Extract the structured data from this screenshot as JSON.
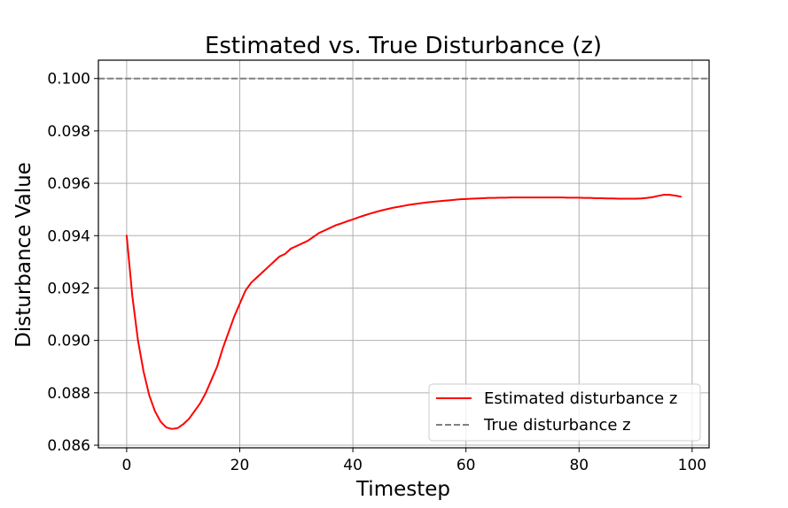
{
  "chart_data": {
    "type": "line",
    "title": "Estimated vs. True Disturbance (z)",
    "xlabel": "Timestep",
    "ylabel": "Disturbance Value",
    "xlim": [
      -5,
      103
    ],
    "ylim": [
      0.0859,
      0.1007
    ],
    "xticks": [
      0,
      20,
      40,
      60,
      80,
      100
    ],
    "xtick_labels": [
      "0",
      "20",
      "40",
      "60",
      "80",
      "100"
    ],
    "yticks": [
      0.086,
      0.088,
      0.09,
      0.092,
      0.094,
      0.096,
      0.098,
      0.1
    ],
    "ytick_labels": [
      "0.086",
      "0.088",
      "0.090",
      "0.092",
      "0.094",
      "0.096",
      "0.098",
      "0.100"
    ],
    "grid": true,
    "legend_position": "lower-right",
    "series": [
      {
        "name": "Estimated disturbance z",
        "style": "solid",
        "color": "#ff0000",
        "x": [
          0,
          1,
          2,
          3,
          4,
          5,
          6,
          7,
          8,
          9,
          10,
          11,
          12,
          13,
          14,
          15,
          16,
          17,
          18,
          19,
          20,
          21,
          22,
          23,
          24,
          25,
          26,
          27,
          28,
          29,
          30,
          31,
          32,
          33,
          34,
          35,
          36,
          37,
          38,
          39,
          40,
          41,
          42,
          43,
          44,
          45,
          46,
          47,
          48,
          49,
          50,
          51,
          52,
          53,
          54,
          55,
          56,
          57,
          58,
          59,
          60,
          61,
          62,
          63,
          64,
          65,
          66,
          67,
          68,
          69,
          70,
          71,
          72,
          73,
          74,
          75,
          76,
          77,
          78,
          79,
          80,
          81,
          82,
          83,
          84,
          85,
          86,
          87,
          88,
          89,
          90,
          91,
          92,
          93,
          94,
          95,
          96,
          97,
          98
        ],
        "y": [
          0.094,
          0.0917,
          0.09,
          0.0888,
          0.0879,
          0.0873,
          0.0869,
          0.08668,
          0.08662,
          0.08665,
          0.0868,
          0.087,
          0.0873,
          0.0876,
          0.088,
          0.0885,
          0.089,
          0.0897,
          0.0903,
          0.0909,
          0.0914,
          0.0919,
          0.0922,
          0.0924,
          0.0926,
          0.0928,
          0.093,
          0.0932,
          0.0933,
          0.0935,
          0.0936,
          0.0937,
          0.0938,
          0.09395,
          0.0941,
          0.0942,
          0.0943,
          0.0944,
          0.09447,
          0.09455,
          0.09462,
          0.0947,
          0.09477,
          0.09484,
          0.0949,
          0.09496,
          0.09501,
          0.09506,
          0.0951,
          0.09514,
          0.09518,
          0.09521,
          0.09524,
          0.09527,
          0.09529,
          0.09531,
          0.09533,
          0.09535,
          0.09537,
          0.09539,
          0.0954,
          0.09541,
          0.09542,
          0.09543,
          0.09544,
          0.09544,
          0.09545,
          0.09545,
          0.09546,
          0.09546,
          0.09546,
          0.09546,
          0.09546,
          0.09546,
          0.09546,
          0.09546,
          0.09546,
          0.09546,
          0.09545,
          0.09545,
          0.09545,
          0.09544,
          0.09544,
          0.09543,
          0.09543,
          0.09542,
          0.09542,
          0.09541,
          0.09541,
          0.09541,
          0.09541,
          0.09542,
          0.09544,
          0.09547,
          0.09552,
          0.09556,
          0.09556,
          0.09553,
          0.09549
        ]
      },
      {
        "name": "True disturbance z",
        "style": "dashed",
        "color": "#808080",
        "constant_y": 0.1
      }
    ]
  }
}
